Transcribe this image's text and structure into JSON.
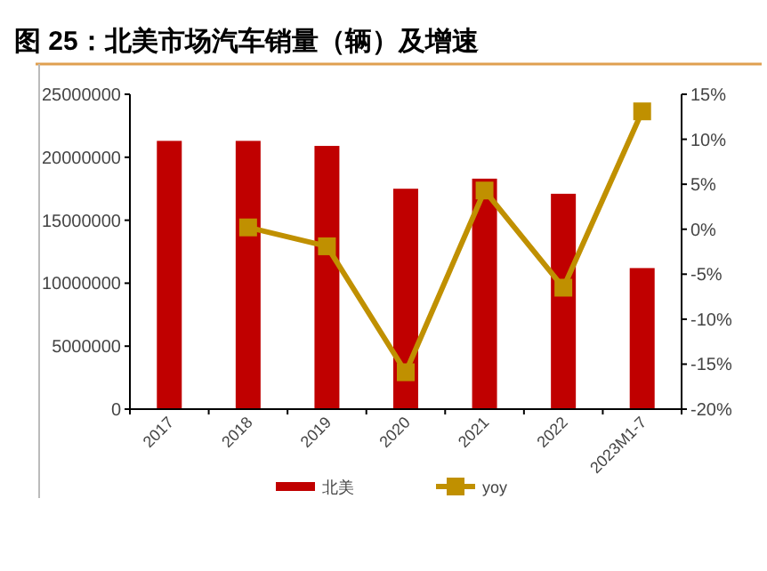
{
  "chart_data": {
    "type": "bar",
    "title": "图 25：北美市场汽车销量（辆）及增速",
    "categories": [
      "2017",
      "2018",
      "2019",
      "2020",
      "2021",
      "2022",
      "2023M1-7"
    ],
    "series": [
      {
        "name": "北美",
        "color": "#c00000",
        "values": [
          21300000,
          21300000,
          20900000,
          17500000,
          18300000,
          17100000,
          11200000
        ]
      },
      {
        "name": "yoy",
        "type": "line",
        "axis": "y2",
        "color": "#c09000",
        "marker": "square",
        "values": [
          null,
          0.2,
          -1.9,
          -15.9,
          4.3,
          -6.5,
          13.1
        ]
      }
    ],
    "ylim": [
      0,
      25000000
    ],
    "yticks": [
      0,
      5000000,
      10000000,
      15000000,
      20000000,
      25000000
    ],
    "y2lim": [
      -20,
      15
    ],
    "y2ticks": [
      {
        "value": -20,
        "label": "-20%"
      },
      {
        "value": -15,
        "label": "-15%"
      },
      {
        "value": -10,
        "label": "-10%"
      },
      {
        "value": -5,
        "label": "-5%"
      },
      {
        "value": 0,
        "label": "0%"
      },
      {
        "value": 5,
        "label": "5%"
      },
      {
        "value": 10,
        "label": "10%"
      },
      {
        "value": 15,
        "label": "15%"
      }
    ],
    "grid": false,
    "legend": "bottom"
  }
}
